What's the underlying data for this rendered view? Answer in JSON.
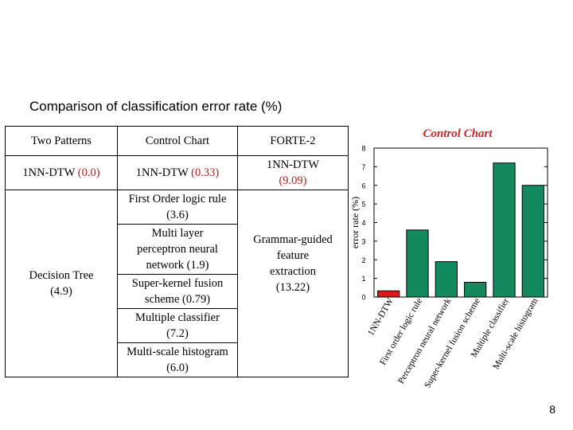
{
  "slide": {
    "title": "Comparison of classification error rate (%)",
    "page_number": "8"
  },
  "table": {
    "headers": [
      "Two Patterns",
      "Control Chart",
      "FORTE-2"
    ],
    "row1": [
      {
        "name": "1NN-DTW",
        "value": "(0.0)"
      },
      {
        "name": "1NN-DTW",
        "value": "(0.33)"
      },
      {
        "name": "1NN-DTW",
        "value": "(9.09)"
      }
    ],
    "two_patterns_cell": {
      "name": "Decision Tree",
      "value": "(4.9)"
    },
    "control_chart_methods": [
      {
        "name": "First Order logic rule",
        "value": "(3.6)"
      },
      {
        "name": "Multi layer perceptron neural network",
        "value": "(1.9)"
      },
      {
        "name": "Super-kernel fusion scheme",
        "value": "(0.79)"
      },
      {
        "name": "Multiple classifier",
        "value": "(7.2)"
      },
      {
        "name": "Multi-scale histogram",
        "value": "(6.0)"
      }
    ],
    "forte_cell": {
      "name": "Grammar-guided feature extraction",
      "value": "(13.22)"
    }
  },
  "chart_data": {
    "type": "bar",
    "title": "Control Chart",
    "ylabel": "error rate (%)",
    "xlabel": "",
    "ylim": [
      0,
      8
    ],
    "yticks": [
      0,
      1,
      2,
      3,
      4,
      5,
      6,
      7,
      8
    ],
    "grid": false,
    "categories": [
      "1NN-DTW",
      "First order logic rule",
      "Perceptron neural network",
      "Super-kernel fusion scheme",
      "Multiple classifier",
      "Multi-scale histogram"
    ],
    "values": [
      0.33,
      3.6,
      1.9,
      0.79,
      7.2,
      6.0
    ],
    "colors": [
      "#e01818",
      "#138a5e",
      "#138a5e",
      "#138a5e",
      "#138a5e",
      "#138a5e"
    ]
  }
}
